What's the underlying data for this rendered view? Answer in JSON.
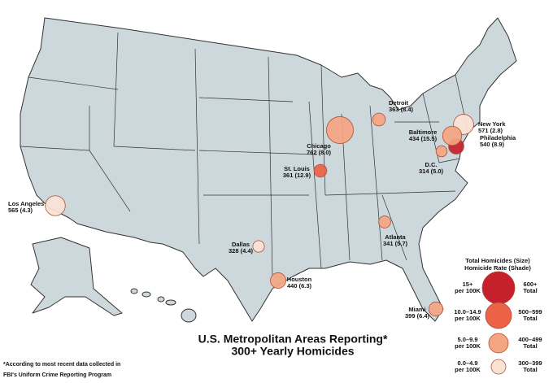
{
  "title": [
    "U.S. Metropolitan Areas Reporting*",
    "300+ Yearly Homicides"
  ],
  "footnote": [
    "*According to most recent data collected in",
    "FBI's  Uniform  Crime Reporting Program"
  ],
  "cities": [
    {
      "name": "Los Angeles",
      "total": 565,
      "rate": 4.3,
      "label": "565 (4.3)",
      "color": "#fbe3d4"
    },
    {
      "name": "Chicago",
      "total": 762,
      "rate": 8.0,
      "label": "762 (8.0)",
      "color": "#f4a582"
    },
    {
      "name": "Detroit",
      "total": 363,
      "rate": 8.4,
      "label": "363 (8.4)",
      "color": "#f4a582"
    },
    {
      "name": "St. Louis",
      "total": 361,
      "rate": 12.9,
      "label": "361 (12.9)",
      "color": "#ec6247"
    },
    {
      "name": "Baltimore",
      "total": 434,
      "rate": 15.5,
      "label": "434 (15.5)",
      "color": "#c5202b"
    },
    {
      "name": "New York",
      "total": 571,
      "rate": 2.8,
      "label": "571 (2.8)",
      "color": "#fbe3d4"
    },
    {
      "name": "Philadelphia",
      "total": 540,
      "rate": 8.9,
      "label": "540 (8.9)",
      "color": "#f4a582"
    },
    {
      "name": "D.C.",
      "total": 314,
      "rate": 5.0,
      "label": "314 (5.0)",
      "color": "#f4a582"
    },
    {
      "name": "Atlanta",
      "total": 341,
      "rate": 5.7,
      "label": "341 (5.7)",
      "color": "#f4a582"
    },
    {
      "name": "Dallas",
      "total": 328,
      "rate": 4.4,
      "label": "328 (4.4)",
      "color": "#fbe3d4"
    },
    {
      "name": "Houston",
      "total": 440,
      "rate": 6.3,
      "label": "440 (6.3)",
      "color": "#f4a582"
    },
    {
      "name": "Miami",
      "total": 399,
      "rate": 6.4,
      "label": "399 (6.4)",
      "color": "#f4a582"
    }
  ],
  "legend": {
    "title": [
      "Total Homicides (Size)",
      "Homicide Rate (Shade)"
    ],
    "items": [
      {
        "rate": [
          "15+",
          "per 100K"
        ],
        "total": [
          "600+",
          "Total"
        ],
        "color": "#c5202b"
      },
      {
        "rate": [
          "10.0–14.9",
          "per 100K"
        ],
        "total": [
          "500–599",
          "Total"
        ],
        "color": "#ec6247"
      },
      {
        "rate": [
          "5.0–9.9",
          "per 100K"
        ],
        "total": [
          "400–499",
          "Total"
        ],
        "color": "#f4a582"
      },
      {
        "rate": [
          "0.0–4.9",
          "per 100K"
        ],
        "total": [
          "300–399",
          "Total"
        ],
        "color": "#fbe3d4"
      }
    ]
  }
}
